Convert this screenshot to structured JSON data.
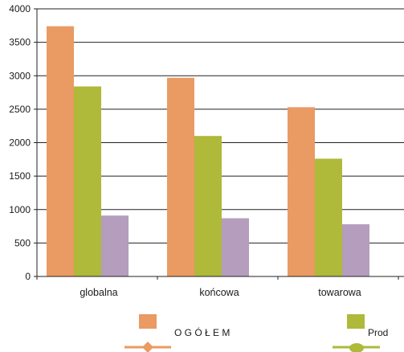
{
  "chart_data": {
    "type": "bar",
    "categories": [
      "globalna",
      "końcowa",
      "towarowa"
    ],
    "series": [
      {
        "name": "O G Ó Ł E M",
        "values": [
          3740,
          2970,
          2530
        ],
        "color": "#ea9a63"
      },
      {
        "name": "Prod",
        "values": [
          2840,
          2100,
          1760
        ],
        "color": "#afb93a"
      },
      {
        "name": "",
        "values": [
          910,
          870,
          780
        ],
        "color": "#b49dbd"
      }
    ],
    "ylim": [
      0,
      4000
    ],
    "yticks": [
      0,
      500,
      1000,
      1500,
      2000,
      2500,
      3000,
      3500,
      4000
    ],
    "grid": true,
    "legend_position": "bottom"
  }
}
